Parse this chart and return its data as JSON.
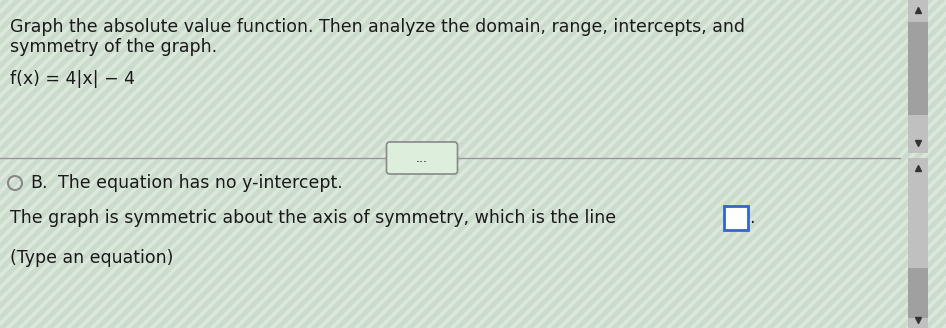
{
  "background_color": "#ccdccc",
  "title_line1": "Graph the absolute value function. Then analyze the domain, range, intercepts, and",
  "title_line2": "symmetry of the graph.",
  "function_label": "f(x) = 4|x| − 4",
  "divider_button_text": "...",
  "option_b_circle": "B.",
  "option_b_rest": "  The equation has no y-intercept.",
  "bottom_line1": "The graph is symmetric about the axis of symmetry, which is the line",
  "bottom_line2": "(Type an equation)",
  "title_fontsize": 12.5,
  "body_fontsize": 12.5,
  "text_color": "#1a1a1a",
  "divider_color": "#999999",
  "scrollbar_thumb_color": "#a0a0a0",
  "scrollbar_bg_color": "#c0c0c0",
  "scrollbar_arrow_color": "#333333",
  "box_edge_color": "#3366cc",
  "circle_color": "#888888",
  "btn_edge_color": "#888888",
  "btn_face_color": "#ddeedd"
}
